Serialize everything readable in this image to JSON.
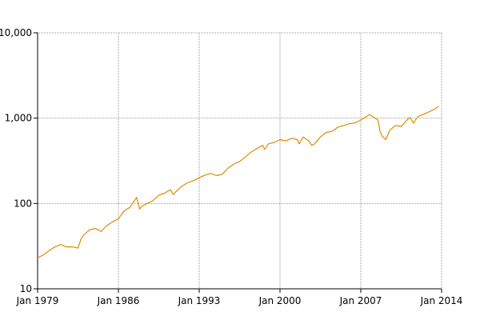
{
  "chart_data": {
    "type": "line",
    "title": "",
    "xlabel": "",
    "ylabel": "",
    "y_scale": "log",
    "grid": true,
    "legend": "none",
    "xlim": [
      "1979-01",
      "2014-01"
    ],
    "ylim": [
      10,
      10000
    ],
    "x_ticks": [
      "Jan 1979",
      "Jan 1986",
      "Jan 1993",
      "Jan 2000",
      "Jan 2007",
      "Jan 2014"
    ],
    "y_ticks": [
      "10",
      "100",
      "1,000",
      "10,000"
    ],
    "series": [
      {
        "color": "#e08a00",
        "points": [
          [
            "1979-01",
            23
          ],
          [
            "1979-07",
            25
          ],
          [
            "1980-01",
            28
          ],
          [
            "1980-07",
            31
          ],
          [
            "1981-01",
            33
          ],
          [
            "1981-07",
            31
          ],
          [
            "1982-01",
            31
          ],
          [
            "1982-07",
            30
          ],
          [
            "1982-10",
            38
          ],
          [
            "1983-01",
            43
          ],
          [
            "1983-07",
            49
          ],
          [
            "1984-01",
            51
          ],
          [
            "1984-07",
            47
          ],
          [
            "1985-01",
            55
          ],
          [
            "1985-07",
            61
          ],
          [
            "1986-01",
            66
          ],
          [
            "1986-07",
            82
          ],
          [
            "1987-01",
            90
          ],
          [
            "1987-08",
            118
          ],
          [
            "1987-11",
            86
          ],
          [
            "1988-01",
            92
          ],
          [
            "1988-07",
            100
          ],
          [
            "1989-01",
            108
          ],
          [
            "1989-07",
            125
          ],
          [
            "1990-01",
            132
          ],
          [
            "1990-07",
            145
          ],
          [
            "1990-10",
            128
          ],
          [
            "1991-01",
            138
          ],
          [
            "1991-07",
            160
          ],
          [
            "1992-01",
            175
          ],
          [
            "1992-07",
            185
          ],
          [
            "1993-01",
            200
          ],
          [
            "1993-07",
            215
          ],
          [
            "1994-01",
            225
          ],
          [
            "1994-07",
            212
          ],
          [
            "1995-01",
            220
          ],
          [
            "1995-07",
            260
          ],
          [
            "1996-01",
            290
          ],
          [
            "1996-07",
            310
          ],
          [
            "1997-01",
            350
          ],
          [
            "1997-07",
            400
          ],
          [
            "1998-01",
            440
          ],
          [
            "1998-07",
            480
          ],
          [
            "1998-09",
            430
          ],
          [
            "1999-01",
            500
          ],
          [
            "1999-07",
            520
          ],
          [
            "2000-01",
            560
          ],
          [
            "2000-07",
            540
          ],
          [
            "2001-01",
            580
          ],
          [
            "2001-07",
            560
          ],
          [
            "2001-09",
            500
          ],
          [
            "2002-01",
            600
          ],
          [
            "2002-07",
            540
          ],
          [
            "2002-10",
            480
          ],
          [
            "2003-01",
            500
          ],
          [
            "2003-07",
            600
          ],
          [
            "2004-01",
            680
          ],
          [
            "2004-07",
            700
          ],
          [
            "2005-01",
            780
          ],
          [
            "2005-07",
            820
          ],
          [
            "2006-01",
            860
          ],
          [
            "2006-07",
            880
          ],
          [
            "2007-01",
            950
          ],
          [
            "2007-10",
            1100
          ],
          [
            "2008-01",
            1050
          ],
          [
            "2008-07",
            950
          ],
          [
            "2008-09",
            700
          ],
          [
            "2008-11",
            620
          ],
          [
            "2009-03",
            560
          ],
          [
            "2009-07",
            720
          ],
          [
            "2010-01",
            820
          ],
          [
            "2010-07",
            800
          ],
          [
            "2011-01",
            950
          ],
          [
            "2011-04",
            1020
          ],
          [
            "2011-08",
            870
          ],
          [
            "2011-10",
            960
          ],
          [
            "2012-01",
            1050
          ],
          [
            "2012-07",
            1120
          ],
          [
            "2013-01",
            1200
          ],
          [
            "2013-07",
            1300
          ],
          [
            "2013-10",
            1380
          ]
        ]
      }
    ]
  }
}
